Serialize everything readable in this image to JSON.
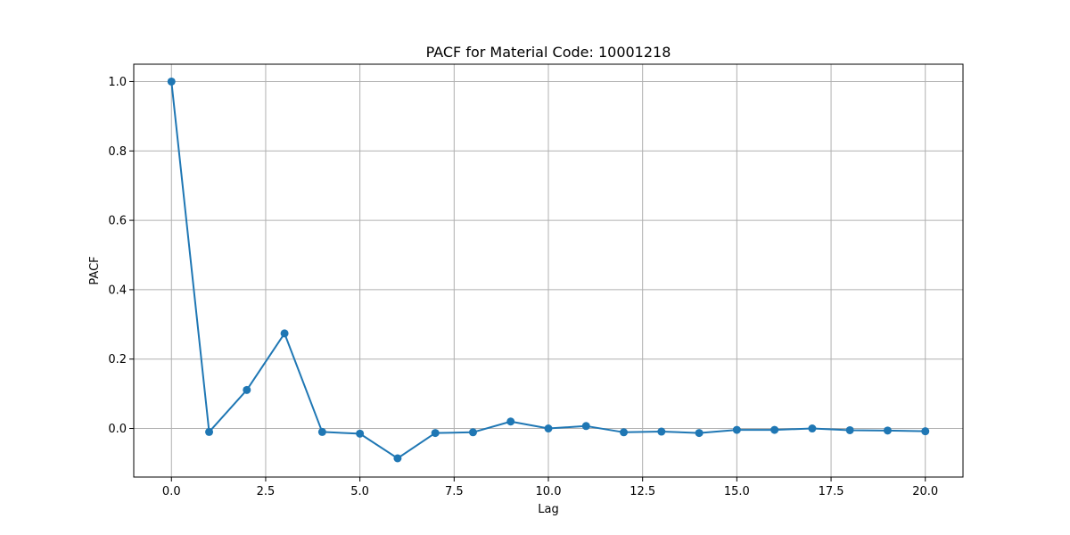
{
  "chart_data": {
    "type": "line",
    "title": "PACF for Material Code: 10001218",
    "xlabel": "Lag",
    "ylabel": "PACF",
    "xlim": [
      -1.0,
      21.0
    ],
    "ylim": [
      -0.14,
      1.05
    ],
    "grid": true,
    "marker": "circle",
    "line_color": "#1f77b4",
    "x_ticks": [
      0.0,
      2.5,
      5.0,
      7.5,
      10.0,
      12.5,
      15.0,
      17.5,
      20.0
    ],
    "x_tick_labels": [
      "0.0",
      "2.5",
      "5.0",
      "7.5",
      "10.0",
      "12.5",
      "15.0",
      "17.5",
      "20.0"
    ],
    "y_ticks": [
      0.0,
      0.2,
      0.4,
      0.6,
      0.8,
      1.0
    ],
    "y_tick_labels": [
      "0.0",
      "0.2",
      "0.4",
      "0.6",
      "0.8",
      "1.0"
    ],
    "x": [
      0,
      1,
      2,
      3,
      4,
      5,
      6,
      7,
      8,
      9,
      10,
      11,
      12,
      13,
      14,
      15,
      16,
      17,
      18,
      19,
      20
    ],
    "y": [
      1.0,
      -0.01,
      0.111,
      0.274,
      -0.01,
      -0.015,
      -0.086,
      -0.013,
      -0.011,
      0.02,
      0.0,
      0.007,
      -0.011,
      -0.009,
      -0.013,
      -0.004,
      -0.004,
      0.0,
      -0.005,
      -0.006,
      -0.008
    ]
  }
}
